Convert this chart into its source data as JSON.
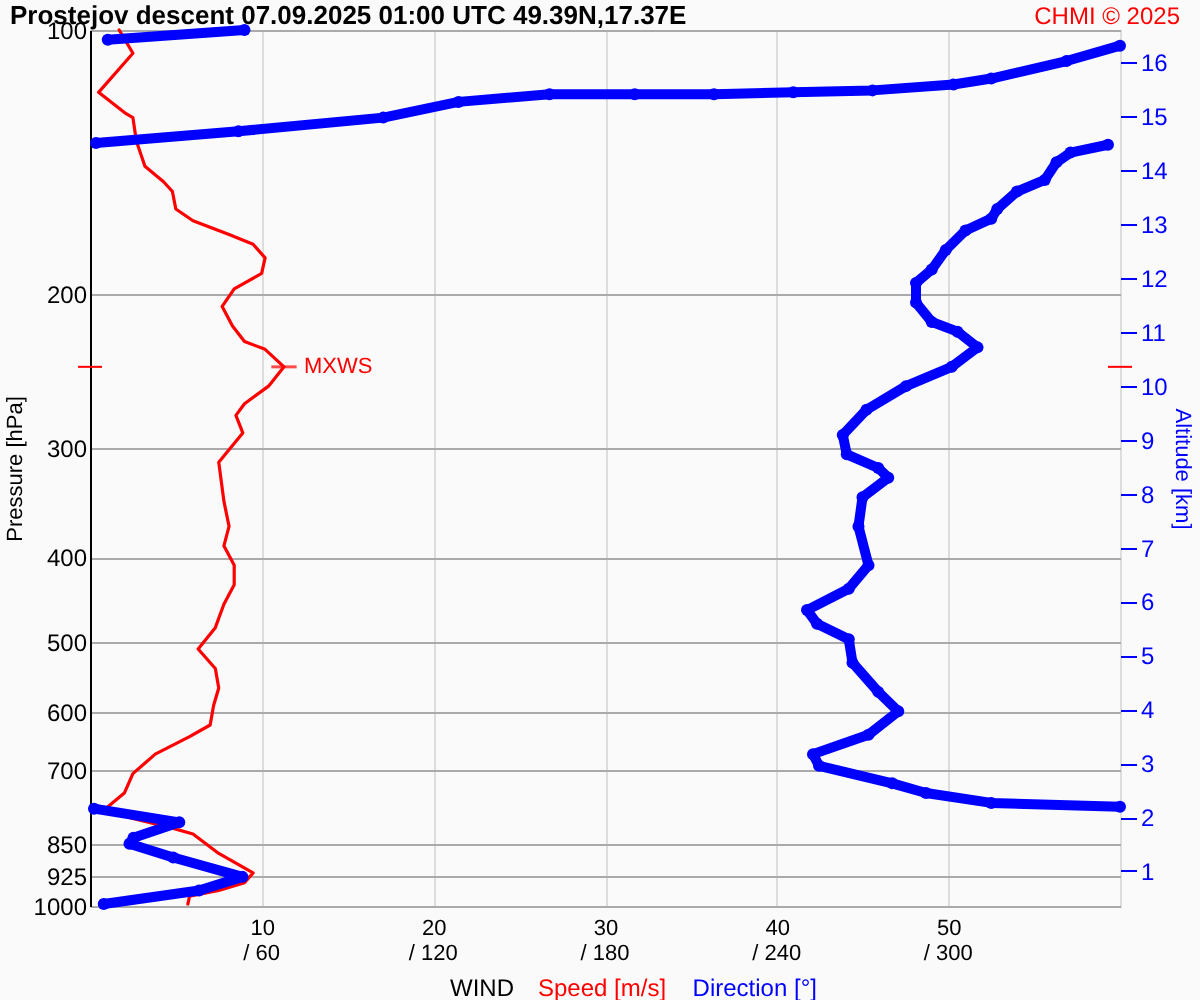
{
  "chart_data": {
    "type": "line",
    "title": "Prostejov  descent   07.09.2025 01:00 UTC  49.39N,17.37E",
    "xlabel": "WIND",
    "ylabel": "Pressure [hPa]",
    "y2label": "Altitude [km]",
    "annotations": [
      "CHMI © 2025",
      {
        "text": "MXWS",
        "x": 11.3,
        "y": 242.4
      }
    ],
    "xlim": [
      0,
      60
    ],
    "xticks": [
      10,
      20,
      30,
      40,
      50
    ],
    "x2lim": [
      0,
      360
    ],
    "x2ticks": [
      {
        "value": 60,
        "label": "/ 60"
      },
      {
        "value": 120,
        "label": "/ 120"
      },
      {
        "value": 180,
        "label": "/ 180"
      },
      {
        "value": 240,
        "label": "/ 240"
      },
      {
        "value": 300,
        "label": "/ 300"
      }
    ],
    "ylim": [
      1000,
      100
    ],
    "yticks": [
      100,
      200,
      300,
      400,
      500,
      600,
      700,
      850,
      925,
      1000
    ],
    "y2lim": [
      0.35,
      16.6
    ],
    "y2ticks": [
      1,
      2,
      3,
      4,
      5,
      6,
      7,
      8,
      9,
      10,
      11,
      12,
      13,
      14,
      15,
      16
    ],
    "log": "y",
    "grid": true,
    "legend": "bottom",
    "series": [
      {
        "name": "Speed [m/s]",
        "color": "#ff0000",
        "marker": "none",
        "x": [
          1.7,
          2.5,
          0.5,
          2.1,
          2.5,
          2.7,
          3.2,
          4.3,
          4.8,
          5.0,
          6.0,
          8.1,
          9.5,
          10.2,
          10.0,
          8.4,
          7.7,
          8.3,
          9.0,
          10.2,
          11.3,
          10.4,
          9.0,
          8.5,
          8.9,
          7.5,
          7.8,
          8.1,
          7.8,
          8.4,
          8.4,
          7.8,
          7.3,
          6.3,
          7.3,
          7.5,
          7.2,
          7.0,
          5.8,
          3.8,
          2.5,
          2.0,
          0.9,
          2.5,
          4.8,
          6.0,
          7.5,
          9.5,
          9.0,
          7.5,
          5.8,
          5.7
        ],
        "values": [
          100,
          106.3,
          117.8,
          124.6,
          125.9,
          133.9,
          143.1,
          149.1,
          152.9,
          160.1,
          165.1,
          171.2,
          175.6,
          182.0,
          189.6,
          197.5,
          206.8,
          217.7,
          226.8,
          231.5,
          242.4,
          255.0,
          267.1,
          275.4,
          288.4,
          311.4,
          345.0,
          368.7,
          388.0,
          408.3,
          429.9,
          452.5,
          481.1,
          508.9,
          535.6,
          563.8,
          590.4,
          621.4,
          640.8,
          670.9,
          706.1,
          743.1,
          774.3,
          794.3,
          814.9,
          827.5,
          871.0,
          916.6,
          940.4,
          960.0,
          974.7,
          994.9
        ]
      },
      {
        "name": "Direction [°]",
        "color": "#0000ff",
        "marker": "circle",
        "axis": "x2",
        "x": [
          54.0,
          6.2,
          null,
          360,
          341.3,
          315.0,
          301.8,
          273.5,
          245.8,
          218.1,
          190.4,
          160.6,
          128.8,
          102.5,
          51.9,
          2.1,
          null,
          355.8,
          342.7,
          337.8,
          333.7,
          324.0,
          317.1,
          315.0,
          306.0,
          299.1,
          294.2,
          288.7,
          288.7,
          294.2,
          303.2,
          310.2,
          301.2,
          285.2,
          271.4,
          263.1,
          264.5,
          275.5,
          279.0,
          270.0,
          268.6,
          272.1,
          265.2,
          250.6,
          254.1,
          265.2,
          266.5,
          275.5,
          282.5,
          272.1,
          252.7,
          254.8,
          280.4,
          292.2,
          315.0,
          360,
          null,
          1.4,
          31.2,
          15.2,
          13.8,
          29.1,
          53.3,
          38.1,
          4.8
        ],
        "values": [
          100,
          102.6,
          null,
          104.2,
          108.5,
          113.6,
          115.4,
          117.2,
          117.8,
          118.4,
          118.4,
          118.4,
          120.8,
          125.9,
          130.5,
          134.6,
          null,
          135.2,
          138.0,
          141.6,
          148.3,
          152.9,
          160.1,
          164.2,
          169.4,
          178.3,
          187.7,
          194.4,
          204.7,
          215.4,
          221.0,
          230.3,
          242.4,
          255.0,
          271.3,
          289.9,
          305.1,
          316.2,
          324.4,
          341.5,
          368.7,
          408.3,
          434.4,
          459.4,
          476.2,
          496.1,
          527.5,
          569.6,
          599.5,
          637.5,
          670.9,
          691.8,
          724.4,
          743.1,
          762.6,
          770.4,
          null,
          774.3,
          802.6,
          836.0,
          848.9,
          880.3,
          926.3,
          960.0,
          994.9
        ]
      }
    ]
  }
}
